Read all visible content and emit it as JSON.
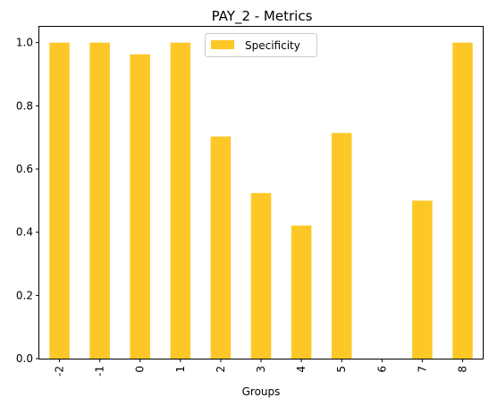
{
  "chart_data": {
    "type": "bar",
    "title": "PAY_2 - Metrics",
    "xlabel": "Groups",
    "ylabel": "",
    "categories": [
      "-2",
      "-1",
      "0",
      "1",
      "2",
      "3",
      "4",
      "5",
      "6",
      "7",
      "8"
    ],
    "series": [
      {
        "name": "Specificity",
        "color": "#fdc827",
        "values": [
          1.0,
          1.0,
          0.963,
          1.0,
          0.703,
          0.524,
          0.421,
          0.714,
          0.0,
          0.5,
          1.0
        ]
      }
    ],
    "ylim": [
      0,
      1.05
    ],
    "yticks": [
      "0.0",
      "0.2",
      "0.4",
      "0.6",
      "0.8",
      "1.0"
    ],
    "legend": "top-center",
    "grid": false
  }
}
